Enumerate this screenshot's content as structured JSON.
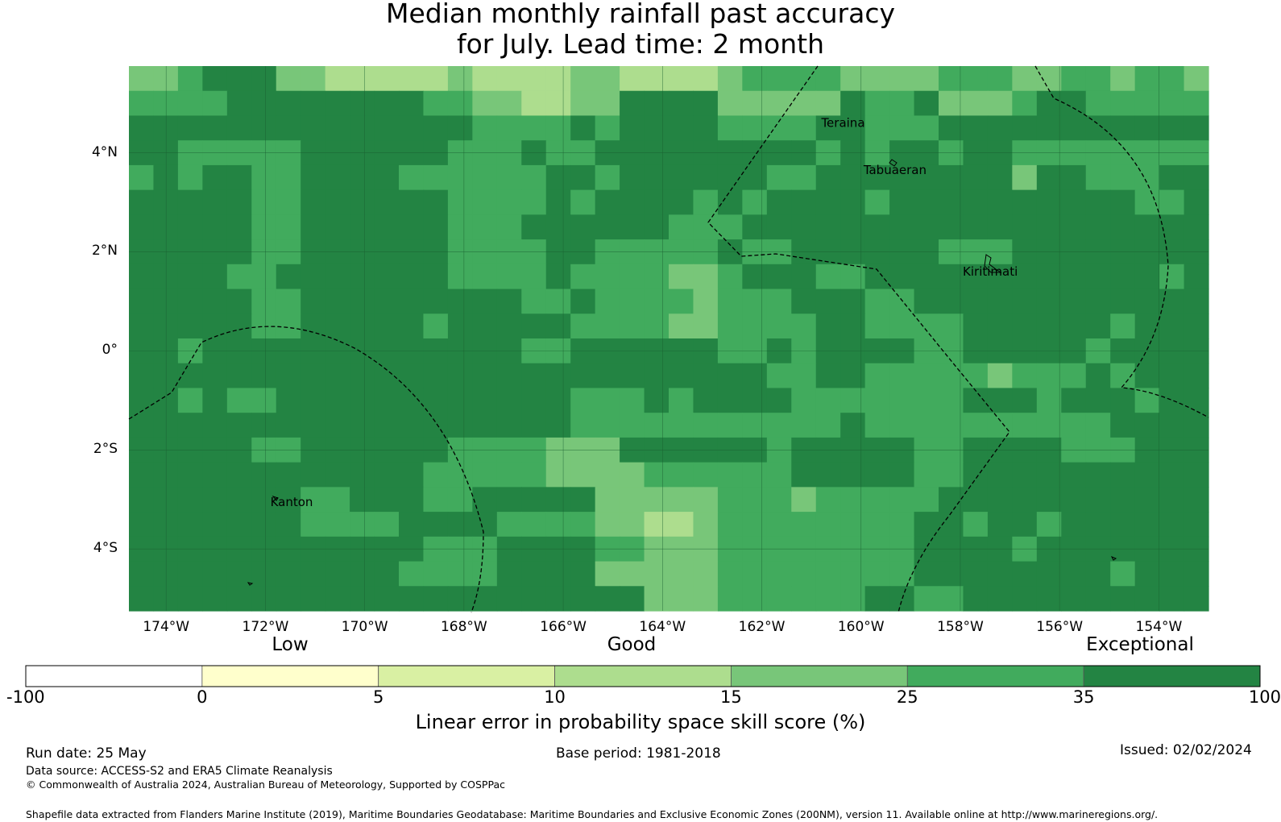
{
  "title": {
    "line1": "Median monthly rainfall past accuracy",
    "line2": "for July. Lead time: 2 month"
  },
  "map": {
    "lon_range": [
      -174.75,
      -153.0
    ],
    "lat_range": [
      -5.25,
      5.75
    ],
    "lat_ticks": [
      {
        "value": 4,
        "label": "4°N"
      },
      {
        "value": 2,
        "label": "2°N"
      },
      {
        "value": 0,
        "label": "0°"
      },
      {
        "value": -2,
        "label": "2°S"
      },
      {
        "value": -4,
        "label": "4°S"
      }
    ],
    "lon_ticks": [
      {
        "value": -174,
        "label": "174°W"
      },
      {
        "value": -172,
        "label": "172°W"
      },
      {
        "value": -170,
        "label": "170°W"
      },
      {
        "value": -168,
        "label": "168°W"
      },
      {
        "value": -166,
        "label": "166°W"
      },
      {
        "value": -164,
        "label": "164°W"
      },
      {
        "value": -162,
        "label": "162°W"
      },
      {
        "value": -160,
        "label": "160°W"
      },
      {
        "value": -158,
        "label": "158°W"
      },
      {
        "value": -156,
        "label": "156°W"
      },
      {
        "value": -154,
        "label": "154°W"
      }
    ],
    "places": [
      {
        "name": "Teraina",
        "lon": -160.8,
        "lat": 4.6
      },
      {
        "name": "Tabuaeran",
        "lon": -159.95,
        "lat": 3.65
      },
      {
        "name": "Kiritimati",
        "lon": -157.95,
        "lat": 1.6
      },
      {
        "name": "Kanton",
        "lon": -171.9,
        "lat": -3.05
      }
    ],
    "grid_rows": [
      "44566644333334333344333345555444455544554554",
      "55556666666655443344666644444655644456655555",
      "66666666666666555565666655556655566666666666",
      "66555556666665556556666666665656656655555555",
      "56566556666555555665666666556666666646655566",
      "66666556666665555656666565666656666666666556",
      "66666556666665556666665556666666666666666666",
      "66666556666665555665555565566666655566666666",
      "66665566666665555655554456665566666666666656",
      "66666556666666665565555455566655666666666666",
      "66666556666656666655554455556655556666665666",
      "66566666666666665566666655656666556666656666",
      "66666666666666666666666666556655555455565666",
      "66565566666666666655565666655555556665666566",
      "66666666666666666655555555555655555555556666",
      "66666556666665555444666666566666556666555666",
      "66666666666655555444455555566666556666666666",
      "66666665566655666664444455545555566666666666",
      "66666665555666655554433455555555665665666666",
      "66666666666655566665544455555555666656666666",
      "66666666666555566664444455555555666666665666",
      "66666666666666666666644455555566556666666666"
    ]
  },
  "colorbar": {
    "category_labels": [
      "Low",
      "Good",
      "Exceptional"
    ],
    "ticks": [
      "-100",
      "0",
      "5",
      "10",
      "15",
      "25",
      "35",
      "100"
    ],
    "colors": [
      "#ffffff",
      "#ffffcc",
      "#d9f0a3",
      "#addd8e",
      "#78c679",
      "#41ab5d",
      "#238443"
    ],
    "title": "Linear error in probability space skill score (%)"
  },
  "footer": {
    "run_date": "Run date: 25 May",
    "base_period": "Base period: 1981-2018",
    "issued": "Issued: 02/02/2024",
    "data_source": "Data source: ACCESS-S2 and ERA5 Climate Reanalysis",
    "copyright": "© Commonwealth of Australia 2024, Australian Bureau of Meteorology, Supported by COSPPac",
    "shapefile": "Shapefile data extracted from Flanders Marine Institute (2019), Maritime Boundaries Geodatabase: Maritime Boundaries and Exclusive Economic Zones (200NM), version 11. Available online at http://www.marineregions.org/."
  }
}
